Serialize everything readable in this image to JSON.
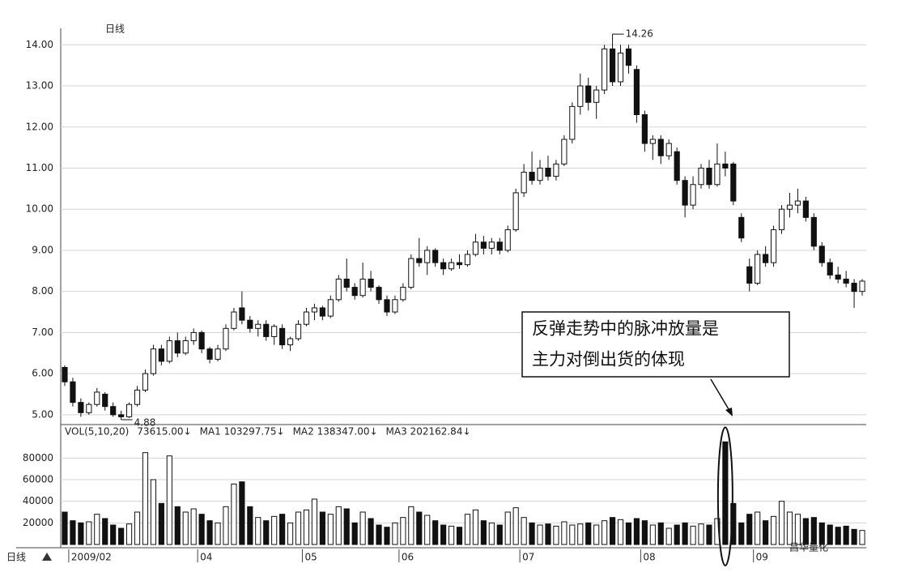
{
  "chart_data": {
    "type": "candlestick",
    "title": "日线",
    "categories": [
      null,
      "2009/02",
      null,
      null,
      null,
      null,
      null,
      null,
      null,
      null,
      null,
      null,
      null,
      null,
      null,
      null,
      null,
      "04",
      null,
      null,
      null,
      null,
      null,
      null,
      null,
      null,
      null,
      null,
      null,
      null,
      "05",
      null,
      null,
      null,
      null,
      null,
      null,
      null,
      null,
      null,
      null,
      null,
      "06",
      null,
      null,
      null,
      null,
      null,
      null,
      null,
      null,
      null,
      null,
      null,
      null,
      null,
      null,
      "07",
      null,
      null,
      null,
      null,
      null,
      null,
      null,
      null,
      null,
      null,
      null,
      null,
      null,
      null,
      "08",
      null,
      null,
      null,
      null,
      null,
      null,
      null,
      null,
      null,
      null,
      null,
      null,
      null,
      "09",
      null,
      null,
      null,
      null,
      null,
      null,
      null,
      null,
      null,
      null,
      null,
      null,
      null
    ],
    "open": [
      6.15,
      5.8,
      5.3,
      5.05,
      5.25,
      5.5,
      5.2,
      5.0,
      4.95,
      5.25,
      5.6,
      6.0,
      6.6,
      6.3,
      6.8,
      6.5,
      6.8,
      7.0,
      6.6,
      6.35,
      6.6,
      7.1,
      7.6,
      7.3,
      7.1,
      7.2,
      6.9,
      7.1,
      6.7,
      6.85,
      7.2,
      7.5,
      7.6,
      7.4,
      7.8,
      8.3,
      8.1,
      7.9,
      8.3,
      8.1,
      7.8,
      7.5,
      7.8,
      8.1,
      8.8,
      8.7,
      9.0,
      8.7,
      8.55,
      8.7,
      8.65,
      8.9,
      9.2,
      9.05,
      9.2,
      9.0,
      9.5,
      10.4,
      10.9,
      10.7,
      11.0,
      10.8,
      11.1,
      11.7,
      12.5,
      13.0,
      12.6,
      12.9,
      13.9,
      13.1,
      13.9,
      13.4,
      12.3,
      11.6,
      11.7,
      11.3,
      11.4,
      10.7,
      10.1,
      10.6,
      11.0,
      10.6,
      11.1,
      11.1,
      9.8,
      8.6,
      8.2,
      8.9,
      8.7,
      9.5,
      10.0,
      10.1,
      10.2,
      9.8,
      9.1,
      8.7,
      8.4,
      8.3,
      8.2,
      8.0
    ],
    "high": [
      6.2,
      5.9,
      5.4,
      5.3,
      5.65,
      5.55,
      5.3,
      5.1,
      5.3,
      5.7,
      6.1,
      6.7,
      6.7,
      6.9,
      7.0,
      6.9,
      7.1,
      7.05,
      6.65,
      6.7,
      7.2,
      7.6,
      8.0,
      7.4,
      7.3,
      7.3,
      7.2,
      7.2,
      6.9,
      7.3,
      7.6,
      7.7,
      7.65,
      7.9,
      8.4,
      8.8,
      8.2,
      8.7,
      8.5,
      8.15,
      7.9,
      7.9,
      8.2,
      8.9,
      9.3,
      9.1,
      9.05,
      8.8,
      8.8,
      8.9,
      9.0,
      9.4,
      9.35,
      9.3,
      9.3,
      9.6,
      10.5,
      11.1,
      11.4,
      11.2,
      11.3,
      11.2,
      11.8,
      12.6,
      13.3,
      13.2,
      13.0,
      14.0,
      14.26,
      14.0,
      14.0,
      13.5,
      12.4,
      11.8,
      11.8,
      11.7,
      11.5,
      10.8,
      10.8,
      11.1,
      11.2,
      11.6,
      11.4,
      11.15,
      9.9,
      8.8,
      9.0,
      9.1,
      9.6,
      10.1,
      10.4,
      10.5,
      10.3,
      9.9,
      9.2,
      8.8,
      8.6,
      8.5,
      8.3,
      8.3
    ],
    "low": [
      5.7,
      5.2,
      4.95,
      5.0,
      5.2,
      5.1,
      4.95,
      4.88,
      4.92,
      5.2,
      5.55,
      5.95,
      6.2,
      6.25,
      6.4,
      6.45,
      6.7,
      6.5,
      6.25,
      6.3,
      6.55,
      7.05,
      7.2,
      7.0,
      6.9,
      6.8,
      6.7,
      6.6,
      6.55,
      6.8,
      7.15,
      7.3,
      7.3,
      7.35,
      7.75,
      8.0,
      7.8,
      7.85,
      8.0,
      7.7,
      7.4,
      7.45,
      7.75,
      8.05,
      8.6,
      8.4,
      8.6,
      8.4,
      8.5,
      8.55,
      8.6,
      8.85,
      8.9,
      8.9,
      8.9,
      8.95,
      9.45,
      10.3,
      10.6,
      10.6,
      10.7,
      10.7,
      11.05,
      11.6,
      12.3,
      12.4,
      12.2,
      12.8,
      13.0,
      13.0,
      13.3,
      12.1,
      11.4,
      11.2,
      11.1,
      11.2,
      10.6,
      9.8,
      10.0,
      10.5,
      10.5,
      10.55,
      10.8,
      10.1,
      9.2,
      8.0,
      8.15,
      8.6,
      8.6,
      9.4,
      9.8,
      9.9,
      9.7,
      9.0,
      8.6,
      8.3,
      8.2,
      8.1,
      7.6,
      7.9
    ],
    "close": [
      5.8,
      5.3,
      5.05,
      5.25,
      5.55,
      5.2,
      5.0,
      4.95,
      5.25,
      5.6,
      6.0,
      6.6,
      6.3,
      6.8,
      6.5,
      6.8,
      7.0,
      6.6,
      6.35,
      6.6,
      7.1,
      7.5,
      7.3,
      7.1,
      7.2,
      6.9,
      7.15,
      6.7,
      6.85,
      7.2,
      7.5,
      7.6,
      7.4,
      7.8,
      8.3,
      8.1,
      7.9,
      8.3,
      8.1,
      7.8,
      7.5,
      7.8,
      8.1,
      8.8,
      8.7,
      9.0,
      8.7,
      8.55,
      8.7,
      8.65,
      8.9,
      9.2,
      9.05,
      9.2,
      9.0,
      9.5,
      10.4,
      10.9,
      10.7,
      11.0,
      10.8,
      11.1,
      11.7,
      12.5,
      13.0,
      12.6,
      12.9,
      13.9,
      13.1,
      13.8,
      13.5,
      12.3,
      11.6,
      11.7,
      11.3,
      11.6,
      10.7,
      10.1,
      10.6,
      11.0,
      10.6,
      11.1,
      11.0,
      10.2,
      9.3,
      8.2,
      8.9,
      8.7,
      9.5,
      10.0,
      10.1,
      10.2,
      9.8,
      9.1,
      8.7,
      8.4,
      8.3,
      8.2,
      8.0,
      8.25
    ],
    "volume": [
      30000,
      22000,
      20000,
      21000,
      28000,
      24000,
      18000,
      15000,
      19000,
      30000,
      85000,
      60000,
      38000,
      82000,
      35000,
      30000,
      33000,
      28000,
      22000,
      20000,
      35000,
      56000,
      58000,
      35000,
      25000,
      22000,
      26000,
      28000,
      20000,
      30000,
      32000,
      42000,
      30000,
      28000,
      35000,
      33000,
      20000,
      30000,
      24000,
      18000,
      16000,
      20000,
      25000,
      35000,
      30000,
      27000,
      22000,
      18000,
      17000,
      16000,
      28000,
      32000,
      22000,
      20000,
      18000,
      30000,
      34000,
      25000,
      20000,
      18000,
      19000,
      17000,
      21000,
      18000,
      19000,
      20000,
      18000,
      22000,
      25000,
      23000,
      20000,
      24000,
      22000,
      18000,
      20000,
      15000,
      18000,
      20000,
      17000,
      19000,
      18000,
      24000,
      95000,
      38000,
      20000,
      28000,
      30000,
      22000,
      26000,
      40000,
      30000,
      28000,
      24000,
      25000,
      20000,
      18000,
      16000,
      17000,
      14000,
      13000
    ],
    "ylim": [
      4.8,
      14.4
    ],
    "yticks": [
      {
        "value": 5,
        "label": "5.00"
      },
      {
        "value": 6,
        "label": "6.00"
      },
      {
        "value": 7,
        "label": "7.00"
      },
      {
        "value": 8,
        "label": "8.00"
      },
      {
        "value": 9,
        "label": "9.00"
      },
      {
        "value": 10,
        "label": "10.00"
      },
      {
        "value": 11,
        "label": "11.00"
      },
      {
        "value": 12,
        "label": "12.00"
      },
      {
        "value": 13,
        "label": "13.00"
      },
      {
        "value": 14,
        "label": "14.00"
      }
    ],
    "volume_ylim": [
      0,
      108750
    ],
    "volume_yticks": [
      20000,
      40000,
      60000,
      80000
    ],
    "volume_legend": [
      "VOL(5,10,20)",
      "73615.00↓",
      "MA1 103297.75↓",
      "MA2 138347.00↓",
      "MA3 202162.84↓"
    ],
    "grid": true,
    "annotation": [
      "反弹走势中的脉冲放量是",
      "主力对倒出货的体现"
    ],
    "watermark": "昌华量化"
  }
}
